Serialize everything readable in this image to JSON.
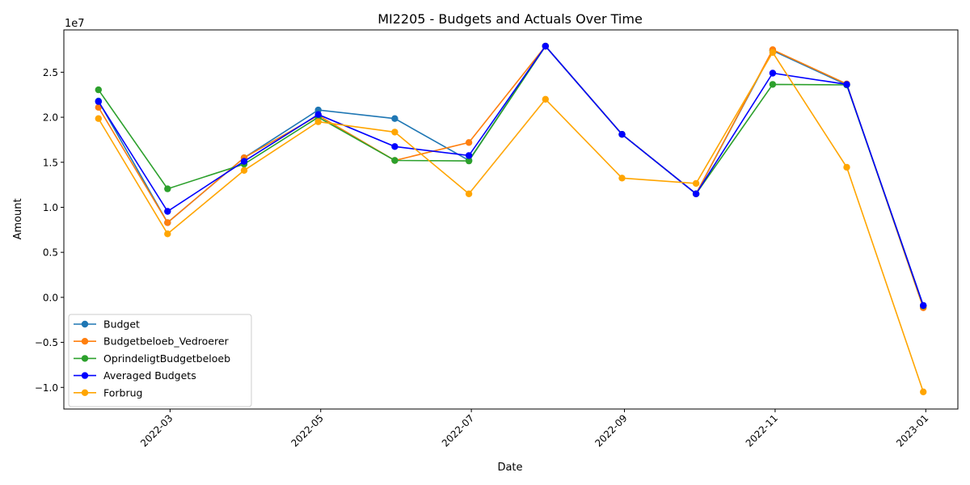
{
  "chart_data": {
    "type": "line",
    "title": "MI2205 - Budgets and Actuals Over Time",
    "xlabel": "Date",
    "ylabel": "Amount",
    "offset_label": "1e7",
    "x": [
      "2022-01-31",
      "2022-02-28",
      "2022-03-31",
      "2022-04-30",
      "2022-05-31",
      "2022-06-30",
      "2022-07-31",
      "2022-08-31",
      "2022-09-30",
      "2022-10-31",
      "2022-11-30",
      "2022-12-31"
    ],
    "xlim": [
      "2022-01-17",
      "2023-01-14"
    ],
    "ylim": [
      -12400000,
      29700000
    ],
    "x_ticks": [
      {
        "date": "2022-03-01",
        "label": "2022-03"
      },
      {
        "date": "2022-05-01",
        "label": "2022-05"
      },
      {
        "date": "2022-07-01",
        "label": "2022-07"
      },
      {
        "date": "2022-09-01",
        "label": "2022-09"
      },
      {
        "date": "2022-11-01",
        "label": "2022-11"
      },
      {
        "date": "2023-01-01",
        "label": "2023-01"
      }
    ],
    "y_ticks": [
      {
        "value": -10000000,
        "label": "−1.0"
      },
      {
        "value": -5000000,
        "label": "−0.5"
      },
      {
        "value": 0,
        "label": "0.0"
      },
      {
        "value": 5000000,
        "label": "0.5"
      },
      {
        "value": 10000000,
        "label": "1.0"
      },
      {
        "value": 15000000,
        "label": "1.5"
      },
      {
        "value": 20000000,
        "label": "2.0"
      },
      {
        "value": 25000000,
        "label": "2.5"
      }
    ],
    "grid": false,
    "legend_position": "lower-left",
    "series": [
      {
        "name": "Budget",
        "color": "#1f77b4",
        "values": [
          21800000,
          8300000,
          15500000,
          20800000,
          19850000,
          15200000,
          27900000,
          18100000,
          11500000,
          27400000,
          23600000,
          -900000
        ]
      },
      {
        "name": "Budgetbeloeb_Vedroerer",
        "color": "#ff7f0e",
        "values": [
          21100000,
          8300000,
          15500000,
          20200000,
          15200000,
          17200000,
          27900000,
          18100000,
          11500000,
          27500000,
          23700000,
          -1150000
        ]
      },
      {
        "name": "OprindeligtBudgetbeloeb",
        "color": "#2ca02c",
        "values": [
          23050000,
          12050000,
          14800000,
          20000000,
          15200000,
          15150000,
          27900000,
          18100000,
          11500000,
          23650000,
          23600000,
          -950000
        ]
      },
      {
        "name": "Averaged Budgets",
        "color": "#0000ff",
        "values": [
          21750000,
          9550000,
          15100000,
          20300000,
          16750000,
          15750000,
          27900000,
          18100000,
          11500000,
          24900000,
          23650000,
          -900000
        ]
      },
      {
        "name": "Forbrug",
        "color": "#ffa500",
        "values": [
          19850000,
          7050000,
          14100000,
          19500000,
          18350000,
          11500000,
          22000000,
          13250000,
          12650000,
          27200000,
          14450000,
          -10500000
        ]
      }
    ]
  }
}
